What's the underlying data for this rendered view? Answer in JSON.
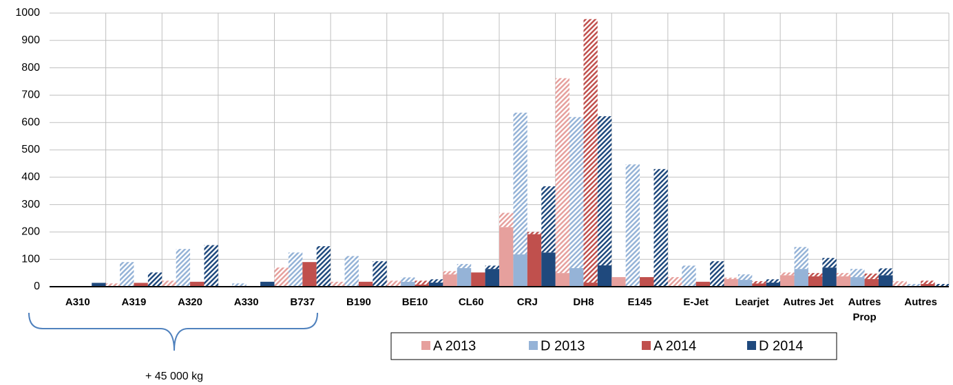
{
  "chart_data": {
    "type": "bar",
    "categories": [
      "A310",
      "A319",
      "A320",
      "A330",
      "B737",
      "B190",
      "BE10",
      "CL60",
      "CRJ",
      "DH8",
      "E145",
      "E-Jet",
      "Learjet",
      "Autres Jet",
      "Autres Prop",
      "Autres"
    ],
    "series": [
      {
        "name": "A 2013",
        "color": "#e6a09d",
        "values": [
          0,
          0,
          0,
          0,
          0,
          0,
          0,
          45,
          218,
          50,
          35,
          0,
          28,
          42,
          38,
          0
        ],
        "hatched_values": [
          0,
          12,
          22,
          0,
          70,
          18,
          22,
          12,
          52,
          712,
          0,
          35,
          5,
          10,
          12,
          20
        ]
      },
      {
        "name": "D 2013",
        "color": "#95b3d7",
        "values": [
          0,
          0,
          0,
          0,
          0,
          0,
          18,
          68,
          118,
          68,
          0,
          0,
          25,
          65,
          35,
          0
        ],
        "hatched_values": [
          0,
          90,
          138,
          12,
          125,
          112,
          16,
          15,
          518,
          552,
          447,
          77,
          20,
          80,
          30,
          10
        ]
      },
      {
        "name": "A 2014",
        "color": "#c0504d",
        "values": [
          0,
          14,
          18,
          0,
          90,
          18,
          8,
          52,
          192,
          15,
          35,
          18,
          12,
          38,
          28,
          10
        ],
        "hatched_values": [
          0,
          0,
          0,
          0,
          0,
          0,
          14,
          0,
          8,
          963,
          0,
          0,
          8,
          12,
          20,
          12
        ]
      },
      {
        "name": "D 2014",
        "color": "#1f497d",
        "values": [
          14,
          0,
          0,
          18,
          0,
          0,
          15,
          65,
          125,
          78,
          0,
          0,
          15,
          70,
          42,
          0
        ],
        "hatched_values": [
          0,
          52,
          152,
          0,
          148,
          93,
          12,
          12,
          242,
          545,
          430,
          93,
          12,
          35,
          25,
          10
        ]
      }
    ],
    "ylim": [
      0,
      1000
    ],
    "yticks": [
      0,
      100,
      200,
      300,
      400,
      500,
      600,
      700,
      800,
      900,
      1000
    ],
    "grid": true,
    "annotation": "+ 45 000 kg"
  }
}
